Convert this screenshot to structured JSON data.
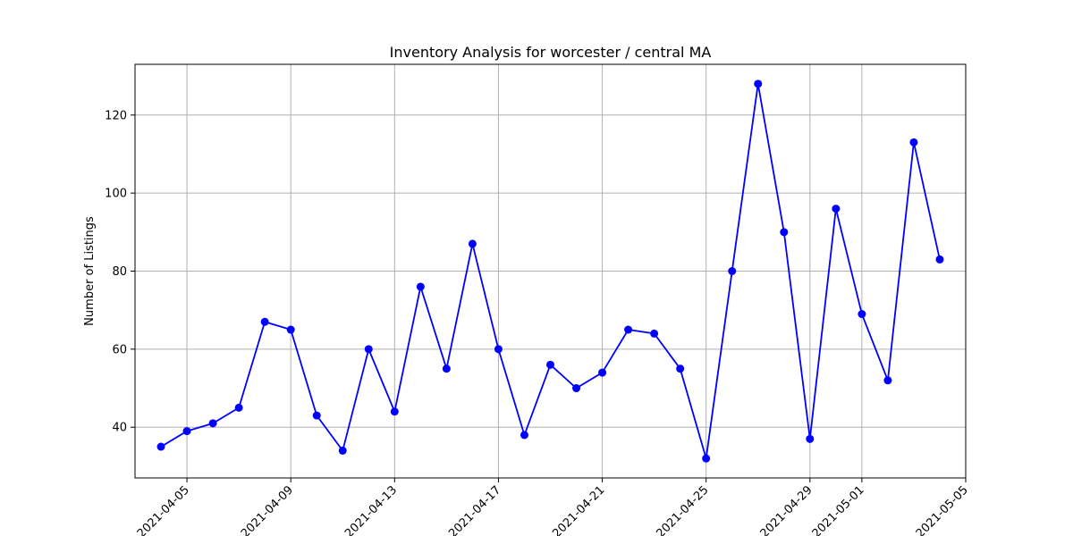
{
  "chart_data": {
    "type": "line",
    "title": "Inventory Analysis for worcester / central MA",
    "xlabel": "",
    "ylabel": "Number of Listings",
    "x": [
      "2021-04-04",
      "2021-04-05",
      "2021-04-06",
      "2021-04-07",
      "2021-04-08",
      "2021-04-09",
      "2021-04-10",
      "2021-04-11",
      "2021-04-12",
      "2021-04-13",
      "2021-04-14",
      "2021-04-15",
      "2021-04-16",
      "2021-04-17",
      "2021-04-18",
      "2021-04-19",
      "2021-04-20",
      "2021-04-21",
      "2021-04-22",
      "2021-04-23",
      "2021-04-24",
      "2021-04-25",
      "2021-04-26",
      "2021-04-27",
      "2021-04-28",
      "2021-04-29",
      "2021-04-30",
      "2021-05-01",
      "2021-05-02",
      "2021-05-03",
      "2021-05-04"
    ],
    "series": [
      {
        "values": [
          35,
          39,
          41,
          45,
          67,
          65,
          43,
          34,
          60,
          44,
          76,
          55,
          87,
          60,
          38,
          56,
          50,
          54,
          65,
          64,
          55,
          32,
          80,
          128,
          90,
          37,
          96,
          69,
          52,
          113,
          83
        ],
        "color": "#0000ff",
        "marker": "circle"
      }
    ],
    "xticks": [
      "2021-04-05",
      "2021-04-09",
      "2021-04-13",
      "2021-04-17",
      "2021-04-21",
      "2021-04-25",
      "2021-04-29",
      "2021-05-01",
      "2021-05-05"
    ],
    "yticks": [
      40,
      60,
      80,
      100,
      120
    ],
    "xlim": [
      "2021-04-03",
      "2021-05-05"
    ],
    "ylim": [
      27,
      133
    ],
    "grid": true
  }
}
